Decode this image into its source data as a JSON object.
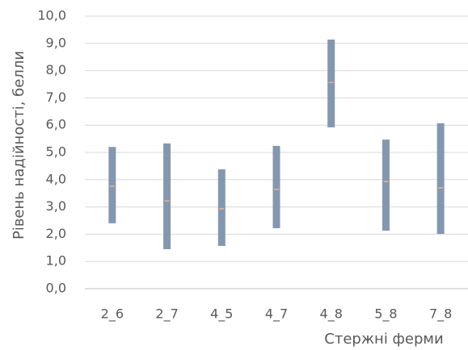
{
  "chart_data": {
    "type": "range",
    "y_label": "Рівень надійності, белли",
    "x_label": "Стержні ферми",
    "categories": [
      "2_6",
      "2_7",
      "4_5",
      "4_7",
      "4_8",
      "5_8",
      "7_8"
    ],
    "low": [
      2.4,
      1.45,
      1.57,
      2.22,
      5.92,
      2.13,
      2.01
    ],
    "high": [
      5.2,
      5.33,
      4.38,
      5.24,
      9.14,
      5.47,
      6.07
    ],
    "mid": [
      3.76,
      3.22,
      2.93,
      3.64,
      7.57,
      3.93,
      3.7
    ],
    "color": "#8497b0",
    "mid_color": "#e6b98f",
    "ylim": [
      0,
      10
    ],
    "yticks": [
      {
        "value": 0,
        "label": "0,0"
      },
      {
        "value": 1,
        "label": "1,0"
      },
      {
        "value": 2,
        "label": "2,0"
      },
      {
        "value": 3,
        "label": "3,0"
      },
      {
        "value": 4,
        "label": "4,0"
      },
      {
        "value": 5,
        "label": "5,0"
      },
      {
        "value": 6,
        "label": "6,0"
      },
      {
        "value": 7,
        "label": "7,0"
      },
      {
        "value": 8,
        "label": "8,0"
      },
      {
        "value": 9,
        "label": "9,0"
      },
      {
        "value": 10,
        "label": "10,0"
      }
    ],
    "grid": true
  }
}
